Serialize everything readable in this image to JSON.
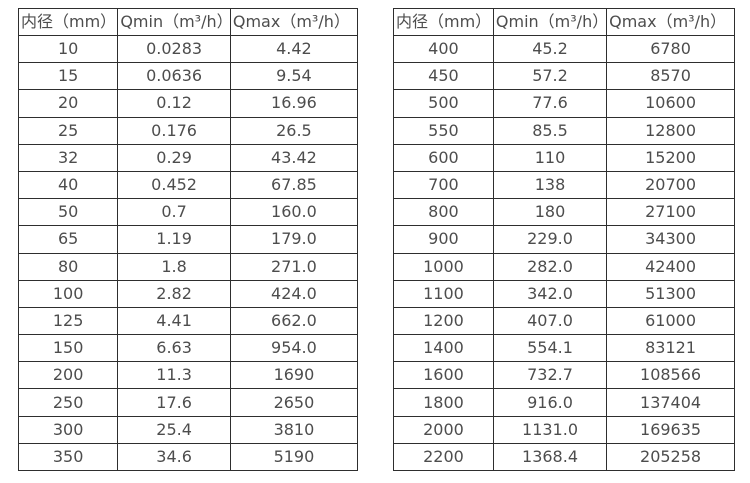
{
  "tables": [
    {
      "name": "small-diameters",
      "headers": [
        "内径（mm）",
        "Qmin（m³/h）",
        "Qmax（m³/h）"
      ],
      "rows": [
        [
          "10",
          "0.0283",
          "4.42"
        ],
        [
          "15",
          "0.0636",
          "9.54"
        ],
        [
          "20",
          "0.12",
          "16.96"
        ],
        [
          "25",
          "0.176",
          "26.5"
        ],
        [
          "32",
          "0.29",
          "43.42"
        ],
        [
          "40",
          "0.452",
          "67.85"
        ],
        [
          "50",
          "0.7",
          "160.0"
        ],
        [
          "65",
          "1.19",
          "179.0"
        ],
        [
          "80",
          "1.8",
          "271.0"
        ],
        [
          "100",
          "2.82",
          "424.0"
        ],
        [
          "125",
          "4.41",
          "662.0"
        ],
        [
          "150",
          "6.63",
          "954.0"
        ],
        [
          "200",
          "11.3",
          "1690"
        ],
        [
          "250",
          "17.6",
          "2650"
        ],
        [
          "300",
          "25.4",
          "3810"
        ],
        [
          "350",
          "34.6",
          "5190"
        ]
      ]
    },
    {
      "name": "large-diameters",
      "headers": [
        "内径（mm）",
        "Qmin（m³/h）",
        "Qmax（m³/h）"
      ],
      "rows": [
        [
          "400",
          "45.2",
          "6780"
        ],
        [
          "450",
          "57.2",
          "8570"
        ],
        [
          "500",
          "77.6",
          "10600"
        ],
        [
          "550",
          "85.5",
          "12800"
        ],
        [
          "600",
          "110",
          "15200"
        ],
        [
          "700",
          "138",
          "20700"
        ],
        [
          "800",
          "180",
          "27100"
        ],
        [
          "900",
          "229.0",
          "34300"
        ],
        [
          "1000",
          "282.0",
          "42400"
        ],
        [
          "1100",
          "342.0",
          "51300"
        ],
        [
          "1200",
          "407.0",
          "61000"
        ],
        [
          "1400",
          "554.1",
          "83121"
        ],
        [
          "1600",
          "732.7",
          "108566"
        ],
        [
          "1800",
          "916.0",
          "137404"
        ],
        [
          "2000",
          "1131.0",
          "169635"
        ],
        [
          "2200",
          "1368.4",
          "205258"
        ]
      ]
    }
  ],
  "colors": {
    "background": "#ffffff",
    "border": "#2e2e2e",
    "text": "#4d4d4d"
  }
}
